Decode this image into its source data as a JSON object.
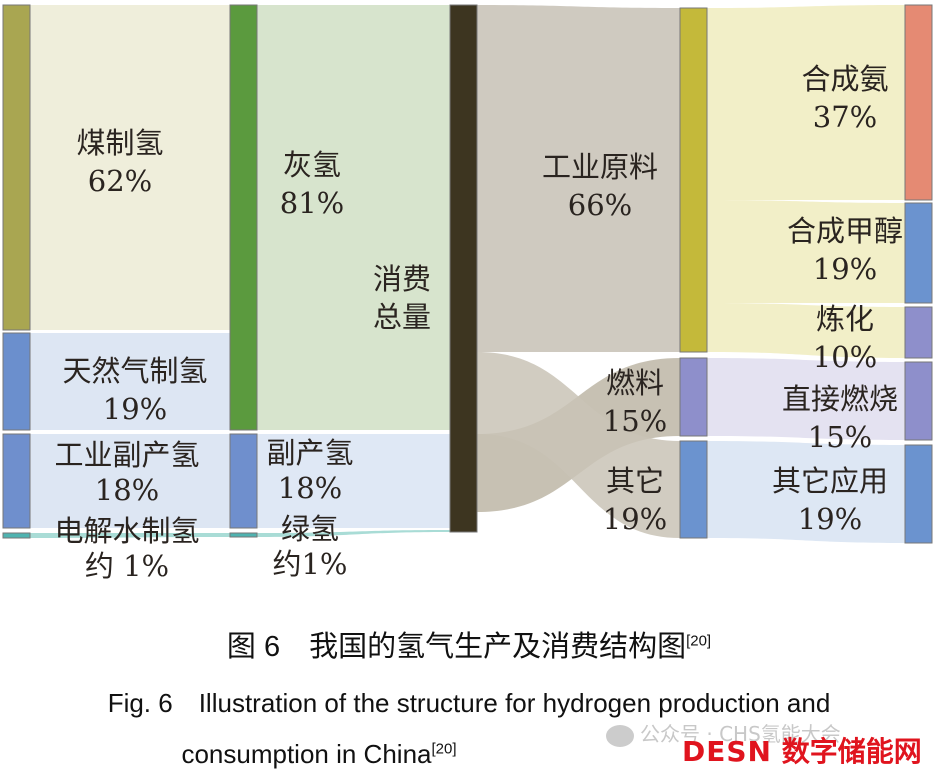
{
  "nodes": [
    {
      "id": "coal",
      "label": "煤制氢",
      "value": "62%",
      "color": "#a9a651"
    },
    {
      "id": "gas",
      "label": "天然气制氢",
      "value": "19%",
      "color": "#6b8fcd"
    },
    {
      "id": "byprod1",
      "label": "工业副产氢",
      "value": "18%",
      "color": "#6f8fcd"
    },
    {
      "id": "elec",
      "label": "电解水制氢",
      "value": "约 1%",
      "color": "#4fb3b0"
    },
    {
      "id": "grey",
      "label": "灰氢",
      "value": "81%",
      "color": "#5b9a3e"
    },
    {
      "id": "byprod2",
      "label": "副产氢",
      "value": "18%",
      "color": "#6f8fcd"
    },
    {
      "id": "green",
      "label": "绿氢",
      "value": "约1%",
      "color": "#4fb3b0"
    },
    {
      "id": "total",
      "label": "消费总量",
      "value": "",
      "color": "#3d3520"
    },
    {
      "id": "industry",
      "label": "工业原料",
      "value": "66%",
      "color": "#c4b93a"
    },
    {
      "id": "fuel",
      "label": "燃料",
      "value": "15%",
      "color": "#8e8fcb"
    },
    {
      "id": "other",
      "label": "其它",
      "value": "19%",
      "color": "#6b93cf"
    },
    {
      "id": "ammonia",
      "label": "合成氨",
      "value": "37%",
      "color": "#e58a73"
    },
    {
      "id": "methanol",
      "label": "合成甲醇",
      "value": "19%",
      "color": "#6b93cf"
    },
    {
      "id": "refining",
      "label": "炼化",
      "value": "10%",
      "color": "#8e8fcb"
    },
    {
      "id": "burn",
      "label": "直接燃烧",
      "value": "15%",
      "color": "#8e8fcb"
    },
    {
      "id": "otheruse",
      "label": "其它应用",
      "value": "19%",
      "color": "#6b93cf"
    }
  ],
  "links": [
    {
      "source": "coal",
      "target": "grey",
      "value": 62,
      "color": "#efeedb"
    },
    {
      "source": "gas",
      "target": "grey",
      "value": 19,
      "color": "#dde6f3"
    },
    {
      "source": "byprod1",
      "target": "byprod2",
      "value": 18,
      "color": "#dde6f3"
    },
    {
      "source": "elec",
      "target": "green",
      "value": 1,
      "color": "#a9dcd6"
    },
    {
      "source": "grey",
      "target": "total",
      "value": 81,
      "color": "#d7e4cd"
    },
    {
      "source": "byprod2",
      "target": "total",
      "value": 18,
      "color": "#dfe8f5"
    },
    {
      "source": "green",
      "target": "total",
      "value": 1,
      "color": "#a9dcd6"
    },
    {
      "source": "total",
      "target": "industry",
      "value": 66,
      "color": "#cfcac0"
    },
    {
      "source": "total",
      "target": "fuel",
      "value": 15,
      "color": "#bdb6a6"
    },
    {
      "source": "total",
      "target": "other",
      "value": 19,
      "color": "#c9c3b6"
    },
    {
      "source": "industry",
      "target": "ammonia",
      "value": 37,
      "color": "#f2efc8"
    },
    {
      "source": "industry",
      "target": "methanol",
      "value": 19,
      "color": "#f2efc8"
    },
    {
      "source": "industry",
      "target": "refining",
      "value": 10,
      "color": "#f2efc8"
    },
    {
      "source": "fuel",
      "target": "burn",
      "value": 15,
      "color": "#e4e2f1"
    },
    {
      "source": "other",
      "target": "otheruse",
      "value": 19,
      "color": "#dde7f4"
    }
  ],
  "caption": {
    "cn": "图 6　我国的氢气生产及消费结构图",
    "cn_ref": "[20]",
    "en_line1": "Fig. 6　Illustration of the structure for hydrogen production and",
    "en_line2": "consumption in China",
    "en_ref": "[20]"
  },
  "watermark": {
    "wechat": "公众号 · CHS氢能大会",
    "brand_latin": "DESN",
    "brand_cn": "数字储能网",
    "brand_color": "#e0141e"
  }
}
